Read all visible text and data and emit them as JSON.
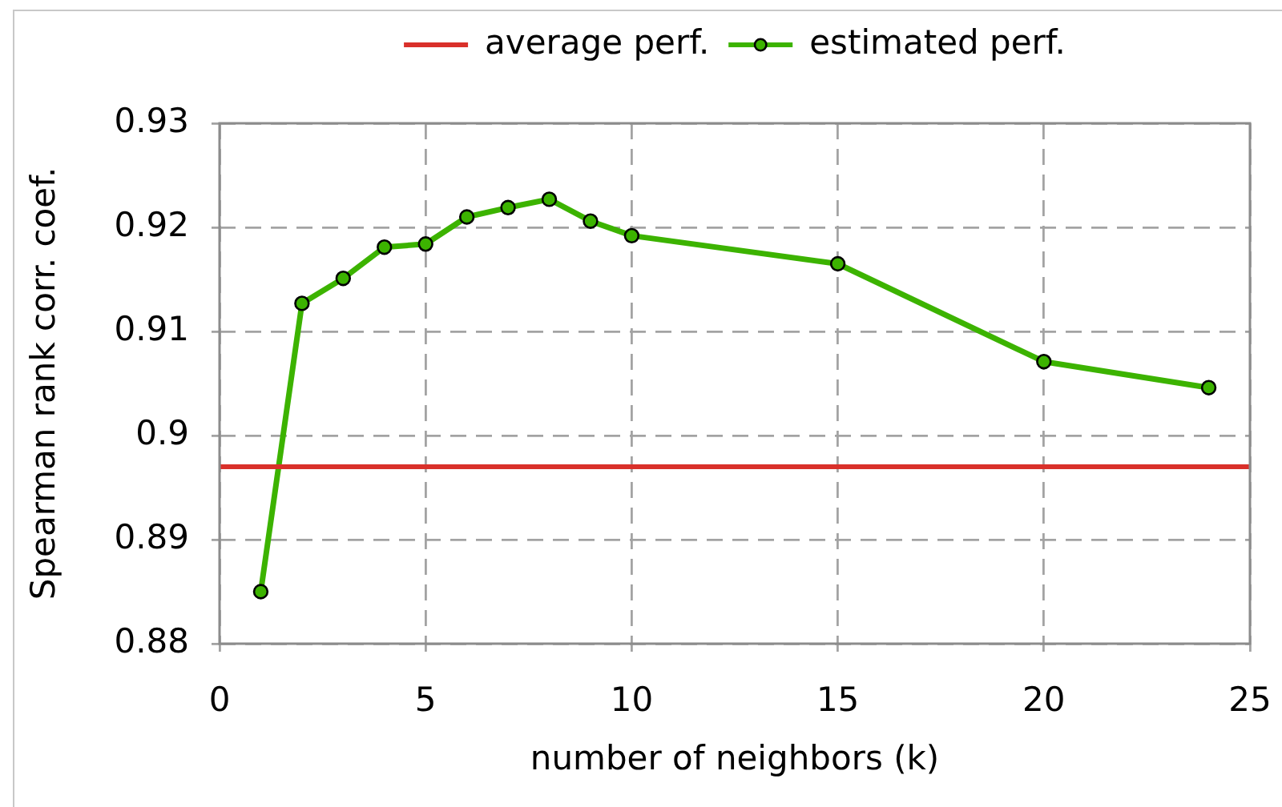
{
  "chart_data": {
    "type": "line",
    "xlabel": "number of neighbors (k)",
    "ylabel": "Spearman rank corr. coef.",
    "xlim": [
      0,
      25
    ],
    "xticks": [
      0,
      5,
      10,
      15,
      20,
      25
    ],
    "ylim": [
      0.88,
      0.93
    ],
    "yticks": [
      0.88,
      0.89,
      0.9,
      0.91,
      0.92,
      0.93
    ],
    "grid": true,
    "legend": "top",
    "marker": "circle",
    "line_style": "solid",
    "ref_lines": [
      {
        "axis": "y",
        "value": 0.897,
        "label": "average perf.",
        "color": "#d9302a"
      }
    ],
    "series": [
      {
        "name": "estimated perf.",
        "color": "#3cb300",
        "x": [
          1,
          2,
          3,
          4,
          5,
          6,
          7,
          8,
          9,
          10,
          15,
          20,
          24
        ],
        "values": [
          0.885,
          0.9127,
          0.9151,
          0.9181,
          0.9184,
          0.921,
          0.9219,
          0.9227,
          0.9206,
          0.9192,
          0.9165,
          0.9071,
          0.9046
        ]
      }
    ]
  }
}
